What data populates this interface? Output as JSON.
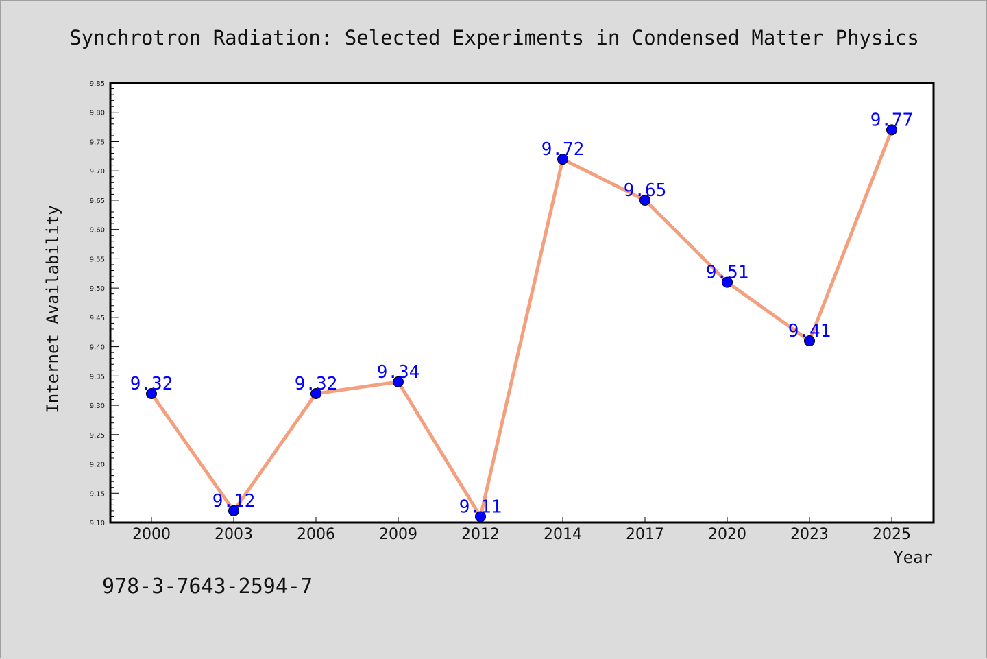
{
  "chart_data": {
    "type": "line",
    "title": "Synchrotron Radiation: Selected Experiments in Condensed Matter Physics",
    "xlabel": "Year",
    "ylabel": "Internet Availability",
    "categories": [
      "2000",
      "2003",
      "2006",
      "2009",
      "2012",
      "2014",
      "2017",
      "2020",
      "2023",
      "2025"
    ],
    "values": [
      9.32,
      9.12,
      9.32,
      9.34,
      9.11,
      9.72,
      9.65,
      9.51,
      9.41,
      9.77
    ],
    "data_labels": [
      "9.32",
      "9.12",
      "9.32",
      "9.34",
      "9.11",
      "9.72",
      "9.65",
      "9.51",
      "9.41",
      "9.77"
    ],
    "ylim": [
      9.1,
      9.85
    ],
    "yticks": [
      "9.10",
      "9.15",
      "9.20",
      "9.25",
      "9.30",
      "9.35",
      "9.40",
      "9.45",
      "9.50",
      "9.55",
      "9.60",
      "9.65",
      "9.70",
      "9.75",
      "9.80",
      "9.85"
    ],
    "grid": false,
    "legend": "none",
    "colors": {
      "line": "#f4a07f",
      "marker": "#0000ff",
      "data_label": "#0000ff",
      "background": "#dcdcdc",
      "plot_background": "#ffffff"
    }
  },
  "footer": {
    "isbn": "978-3-7643-2594-7"
  }
}
